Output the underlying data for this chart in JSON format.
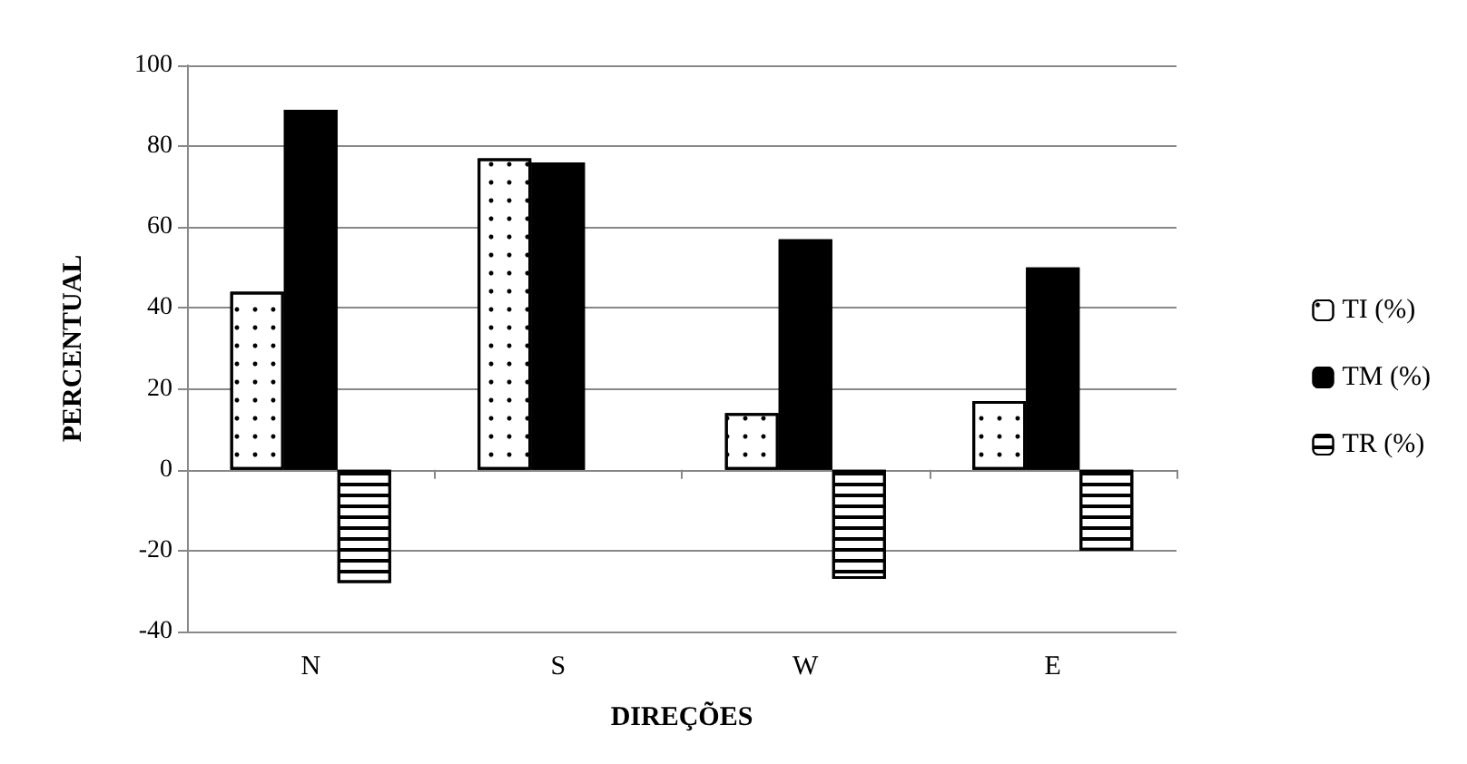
{
  "chart_data": {
    "type": "bar",
    "xlabel": "DIREÇÕES",
    "ylabel": "PERCENTUAL",
    "categories": [
      "N",
      "S",
      "W",
      "E"
    ],
    "series": [
      {
        "name": "TI (%)",
        "color": "#ffffff",
        "values": [
          44,
          77,
          14,
          17
        ]
      },
      {
        "name": "TM (%)",
        "color": "#000000",
        "values": [
          89,
          76,
          57,
          50
        ]
      },
      {
        "name": "TR (%)",
        "color": "#ffffff",
        "values": [
          -28,
          null,
          -27,
          -20
        ]
      }
    ],
    "ylim": [
      -40,
      100
    ],
    "yticks": [
      -40,
      -20,
      0,
      20,
      40,
      60,
      80,
      100
    ],
    "grid": "y",
    "legend": "right"
  }
}
